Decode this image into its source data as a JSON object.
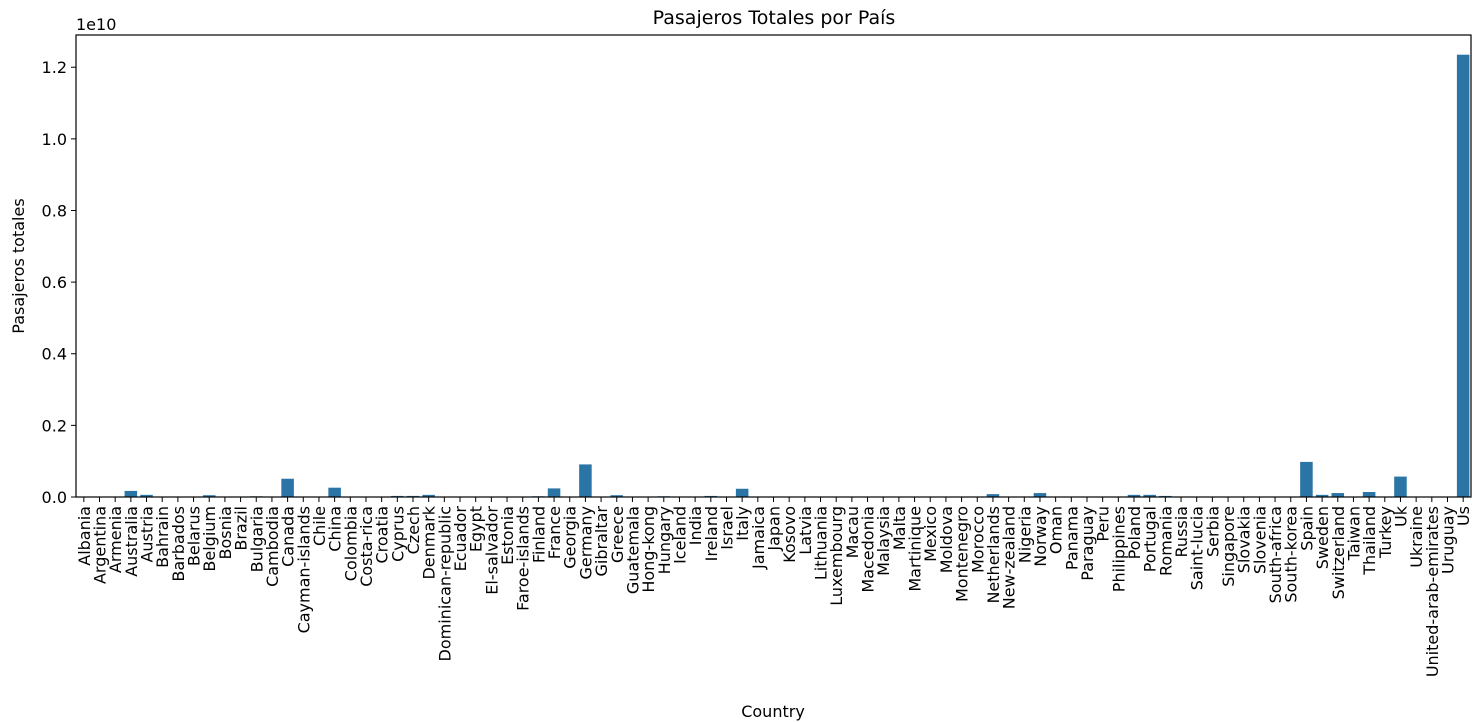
{
  "chart_data": {
    "type": "bar",
    "title": "Pasajeros Totales por País",
    "xlabel": "Country",
    "ylabel": "Pasajeros totales",
    "y_offset_label": "1e10",
    "ylim": [
      0,
      12900000000.0
    ],
    "y_ticks": [
      0,
      2000000000.0,
      4000000000.0,
      6000000000.0,
      8000000000.0,
      10000000000.0,
      12000000000.0
    ],
    "y_tick_labels": [
      "0.0",
      "0.2",
      "0.4",
      "0.6",
      "0.8",
      "1.0",
      "1.2"
    ],
    "grid": false,
    "bar_color": "#2b75a6",
    "categories": [
      "Albania",
      "Argentina",
      "Armenia",
      "Australia",
      "Austria",
      "Bahrain",
      "Barbados",
      "Belarus",
      "Belgium",
      "Bosnia",
      "Brazil",
      "Bulgaria",
      "Cambodia",
      "Canada",
      "Cayman-islands",
      "Chile",
      "China",
      "Colombia",
      "Costa-rica",
      "Croatia",
      "Cyprus",
      "Czech",
      "Denmark",
      "Dominican-republic",
      "Ecuador",
      "Egypt",
      "El-salvador",
      "Estonia",
      "Faroe-islands",
      "Finland",
      "France",
      "Georgia",
      "Germany",
      "Gibraltar",
      "Greece",
      "Guatemala",
      "Hong-kong",
      "Hungary",
      "Iceland",
      "India",
      "Ireland",
      "Israel",
      "Italy",
      "Jamaica",
      "Japan",
      "Kosovo",
      "Latvia",
      "Lithuania",
      "Luxembourg",
      "Macau",
      "Macedonia",
      "Malaysia",
      "Malta",
      "Martinique",
      "Mexico",
      "Moldova",
      "Montenegro",
      "Morocco",
      "Netherlands",
      "New-zealand",
      "Nigeria",
      "Norway",
      "Oman",
      "Panama",
      "Paraguay",
      "Peru",
      "Philippines",
      "Poland",
      "Portugal",
      "Romania",
      "Russia",
      "Saint-lucia",
      "Serbia",
      "Singapore",
      "Slovakia",
      "Slovenia",
      "South-africa",
      "South-korea",
      "Spain",
      "Sweden",
      "Switzerland",
      "Taiwan",
      "Thailand",
      "Turkey",
      "Uk",
      "Ukraine",
      "United-arab-emirates",
      "Uruguay",
      "Us"
    ],
    "values": [
      0,
      0,
      0,
      170000000.0,
      60000000.0,
      0,
      0,
      0,
      50000000.0,
      0,
      0,
      20000000.0,
      0,
      510000000.0,
      0,
      0,
      260000000.0,
      0,
      0,
      0,
      30000000.0,
      30000000.0,
      60000000.0,
      0,
      0,
      0,
      0,
      0,
      0,
      20000000.0,
      240000000.0,
      0,
      910000000.0,
      0,
      50000000.0,
      0,
      0,
      20000000.0,
      0,
      0,
      30000000.0,
      0,
      230000000.0,
      0,
      0,
      0,
      0,
      0,
      0,
      0,
      0,
      0,
      0,
      0,
      0,
      0,
      0,
      0,
      80000000.0,
      0,
      0,
      110000000.0,
      0,
      0,
      0,
      0,
      0,
      60000000.0,
      60000000.0,
      30000000.0,
      0,
      0,
      0,
      0,
      0,
      0,
      0,
      0,
      980000000.0,
      60000000.0,
      110000000.0,
      0,
      140000000.0,
      0,
      570000000.0,
      0,
      0,
      0,
      12350000000.0
    ]
  }
}
